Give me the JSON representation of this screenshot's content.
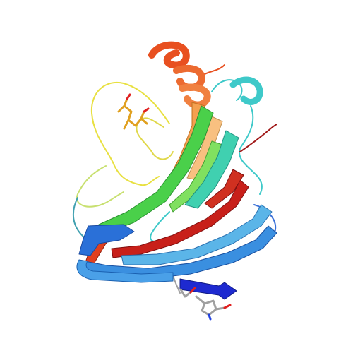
{
  "scene": {
    "background": "#ffffff",
    "subject": "protein-ribbon-rendering",
    "colors": {
      "n_terminus_blue": "#1e4fd8",
      "blue": "#3a8fe0",
      "light_blue": "#5bb5e8",
      "cyan": "#3ec9c9",
      "teal": "#40d0b0",
      "green": "#4ad04a",
      "bright_green": "#6be04a",
      "yellow": "#e8e040",
      "orange": "#f0a040",
      "light_orange": "#f4b060",
      "red_orange": "#e85020",
      "red": "#c8201a",
      "dark_red": "#a01818",
      "ligand_carbon": "#a0a0a0",
      "ligand_oxygen": "#e02020",
      "ligand_nitrogen": "#2040e0",
      "ligand_yellow": "#e0a020"
    }
  }
}
